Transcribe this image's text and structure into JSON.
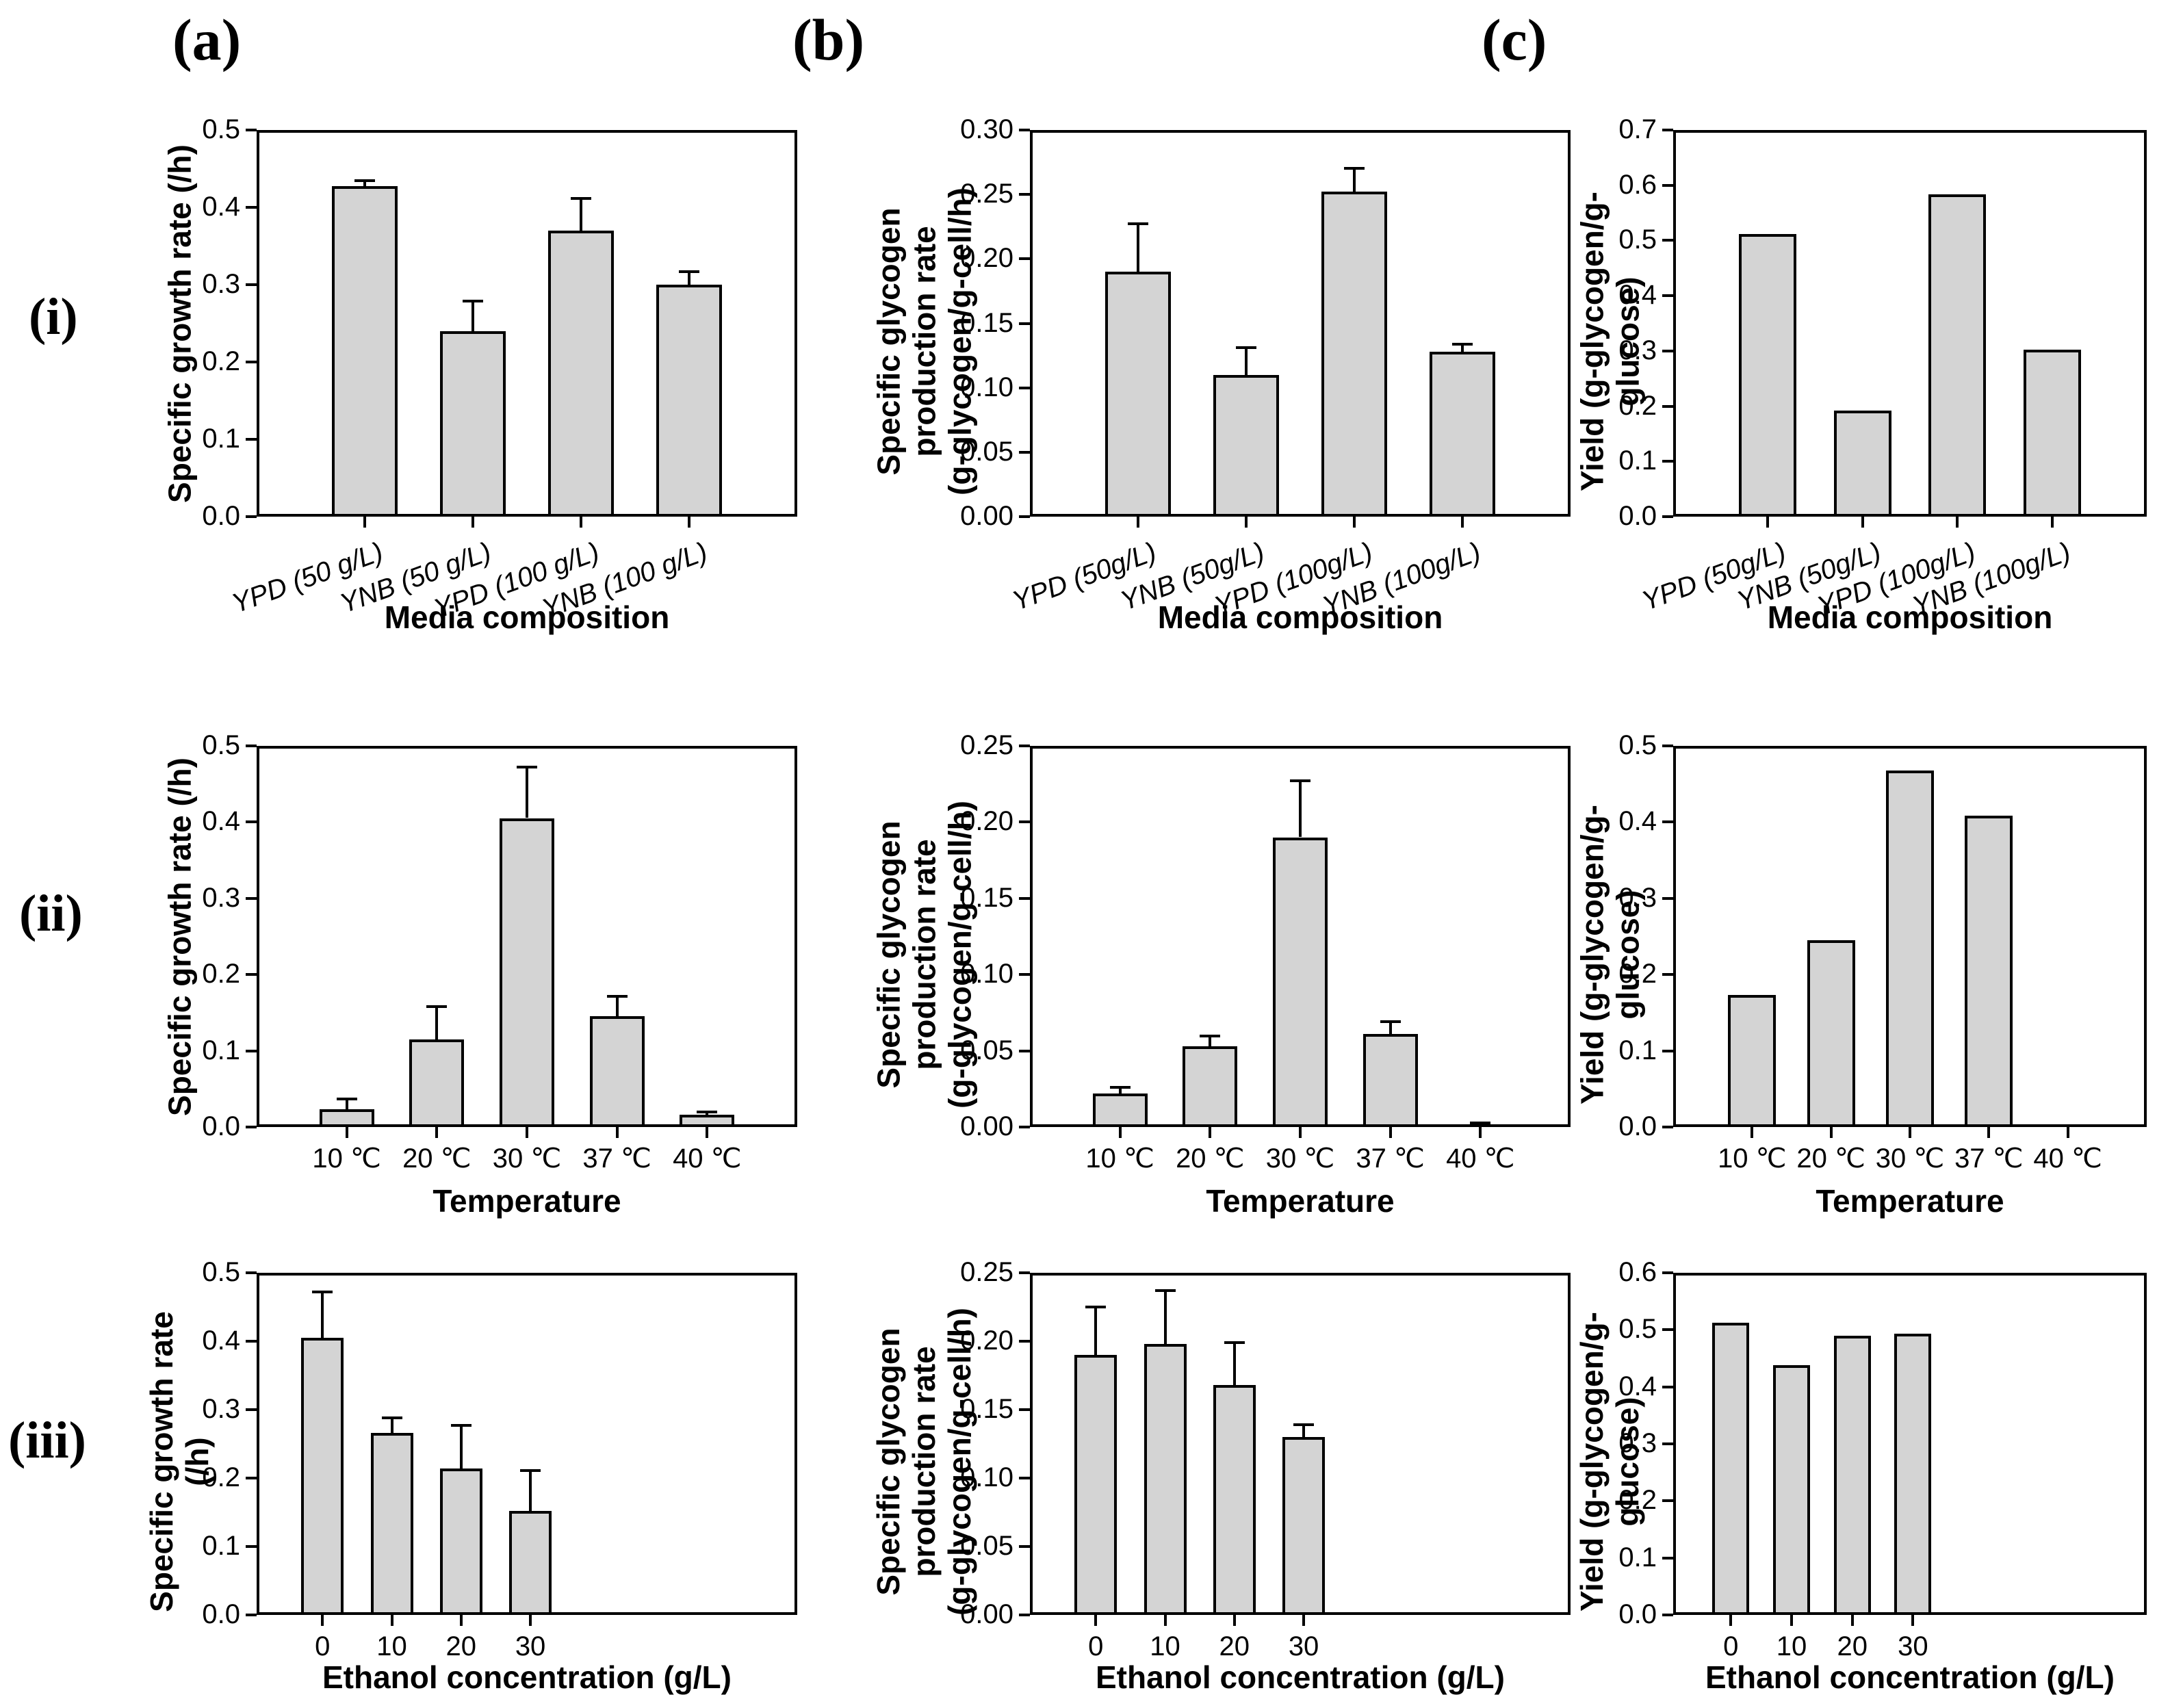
{
  "figure": {
    "panel_letters": [
      "(a)",
      "(b)",
      "(c)"
    ],
    "row_labels": [
      "(i)",
      "(ii)",
      "(iii)"
    ]
  },
  "colors": {
    "bar_fill": "#d4d4d4",
    "bar_border": "#000000",
    "axis": "#000000",
    "background": "#ffffff"
  },
  "chart_data": [
    {
      "type": "bar",
      "xlabel": "Media composition",
      "ylabel_lines": [
        "Specific growth rate (/h)"
      ],
      "categories": [
        "YPD (50 g/L)",
        "YNB (50 g/L)",
        "YPD (100 g/L)",
        "YNB (100 g/L)"
      ],
      "values": [
        0.427,
        0.24,
        0.37,
        0.3
      ],
      "errors": [
        0.006,
        0.037,
        0.04,
        0.015
      ],
      "ylim": [
        0,
        0.5
      ],
      "ytick_step": 0.1,
      "ydecimals": 1,
      "xlabels_rotated": true,
      "grid_on": false,
      "legend": null
    },
    {
      "type": "bar",
      "xlabel": "Media composition",
      "ylabel_lines": [
        "Specific glycogen production rate",
        "(g-glycogen/g-cell/h)"
      ],
      "categories": [
        "YPD (50g/L)",
        "YNB (50g/L)",
        "YPD (100g/L)",
        "YNB (100g/L)"
      ],
      "values": [
        0.19,
        0.11,
        0.252,
        0.128
      ],
      "errors": [
        0.036,
        0.02,
        0.017,
        0.005
      ],
      "ylim": [
        0,
        0.3
      ],
      "ytick_step": 0.05,
      "ydecimals": 2,
      "xlabels_rotated": true,
      "grid_on": false,
      "legend": null
    },
    {
      "type": "bar",
      "xlabel": "Media composition",
      "ylabel_lines": [
        "Yield (g-glycogen/g-glucose)"
      ],
      "categories": [
        "YPD (50g/L)",
        "YNB (50g/L)",
        "YPD (100g/L)",
        "YNB (100g/L)"
      ],
      "values": [
        0.512,
        0.192,
        0.583,
        0.302
      ],
      "errors": [
        0,
        0,
        0,
        0
      ],
      "ylim": [
        0,
        0.7
      ],
      "ytick_step": 0.1,
      "ydecimals": 1,
      "xlabels_rotated": true,
      "grid_on": false,
      "legend": null
    },
    {
      "type": "bar",
      "xlabel": "Temperature",
      "ylabel_lines": [
        "Specific growth rate (/h)"
      ],
      "categories": [
        "10 ℃",
        "20 ℃",
        "30 ℃",
        "37 ℃",
        "40 ℃"
      ],
      "values": [
        0.023,
        0.115,
        0.405,
        0.145,
        0.016
      ],
      "errors": [
        0.012,
        0.041,
        0.065,
        0.025,
        0.002
      ],
      "ylim": [
        0,
        0.5
      ],
      "ytick_step": 0.1,
      "ydecimals": 1,
      "xlabels_rotated": false,
      "grid_on": false,
      "legend": null
    },
    {
      "type": "bar",
      "xlabel": "Temperature",
      "ylabel_lines": [
        "Specific glycogen production rate",
        "(g-glycogen/g-cell/h)"
      ],
      "categories": [
        "10 ℃",
        "20 ℃",
        "30 ℃",
        "37 ℃",
        "40 ℃"
      ],
      "values": [
        0.022,
        0.053,
        0.19,
        0.061,
        0
      ],
      "errors": [
        0.003,
        0.006,
        0.036,
        0.007,
        0.002
      ],
      "ylim": [
        0,
        0.25
      ],
      "ytick_step": 0.05,
      "ydecimals": 2,
      "xlabels_rotated": false,
      "grid_on": false,
      "legend": null
    },
    {
      "type": "bar",
      "xlabel": "Temperature",
      "ylabel_lines": [
        "Yield (g-glycogen/g-glucose)"
      ],
      "categories": [
        "10 ℃",
        "20 ℃",
        "30 ℃",
        "37 ℃",
        "40 ℃"
      ],
      "values": [
        0.173,
        0.245,
        0.468,
        0.408,
        0
      ],
      "errors": [
        0,
        0,
        0,
        0,
        0
      ],
      "ylim": [
        0,
        0.5
      ],
      "ytick_step": 0.1,
      "ydecimals": 1,
      "xlabels_rotated": false,
      "grid_on": false,
      "legend": null
    },
    {
      "type": "bar",
      "xlabel": "Ethanol concentration (g/L)",
      "ylabel_lines": [
        "Specific growth rate (/h)"
      ],
      "categories": [
        "0",
        "10",
        "20",
        "30"
      ],
      "values": [
        0.405,
        0.266,
        0.214,
        0.152
      ],
      "errors": [
        0.065,
        0.02,
        0.061,
        0.057
      ],
      "ylim": [
        0,
        0.5
      ],
      "ytick_step": 0.1,
      "ydecimals": 1,
      "xlabels_rotated": false,
      "grid_on": false,
      "legend": null
    },
    {
      "type": "bar",
      "xlabel": "Ethanol concentration (g/L)",
      "ylabel_lines": [
        "Specific glycogen production rate",
        "(g-glycogen/g-cell/h)"
      ],
      "categories": [
        "0",
        "10",
        "20",
        "30"
      ],
      "values": [
        0.19,
        0.198,
        0.168,
        0.13
      ],
      "errors": [
        0.034,
        0.038,
        0.03,
        0.008
      ],
      "ylim": [
        0,
        0.25
      ],
      "ytick_step": 0.05,
      "ydecimals": 2,
      "xlabels_rotated": false,
      "grid_on": false,
      "legend": null
    },
    {
      "type": "bar",
      "xlabel": "Ethanol concentration (g/L)",
      "ylabel_lines": [
        "Yield (g-glycogen/g-glucose)"
      ],
      "categories": [
        "0",
        "10",
        "20",
        "30"
      ],
      "values": [
        0.512,
        0.438,
        0.49,
        0.493
      ],
      "errors": [
        0,
        0,
        0,
        0
      ],
      "ylim": [
        0,
        0.6
      ],
      "ytick_step": 0.1,
      "ydecimals": 1,
      "xlabels_rotated": false,
      "grid_on": false,
      "legend": null
    }
  ]
}
